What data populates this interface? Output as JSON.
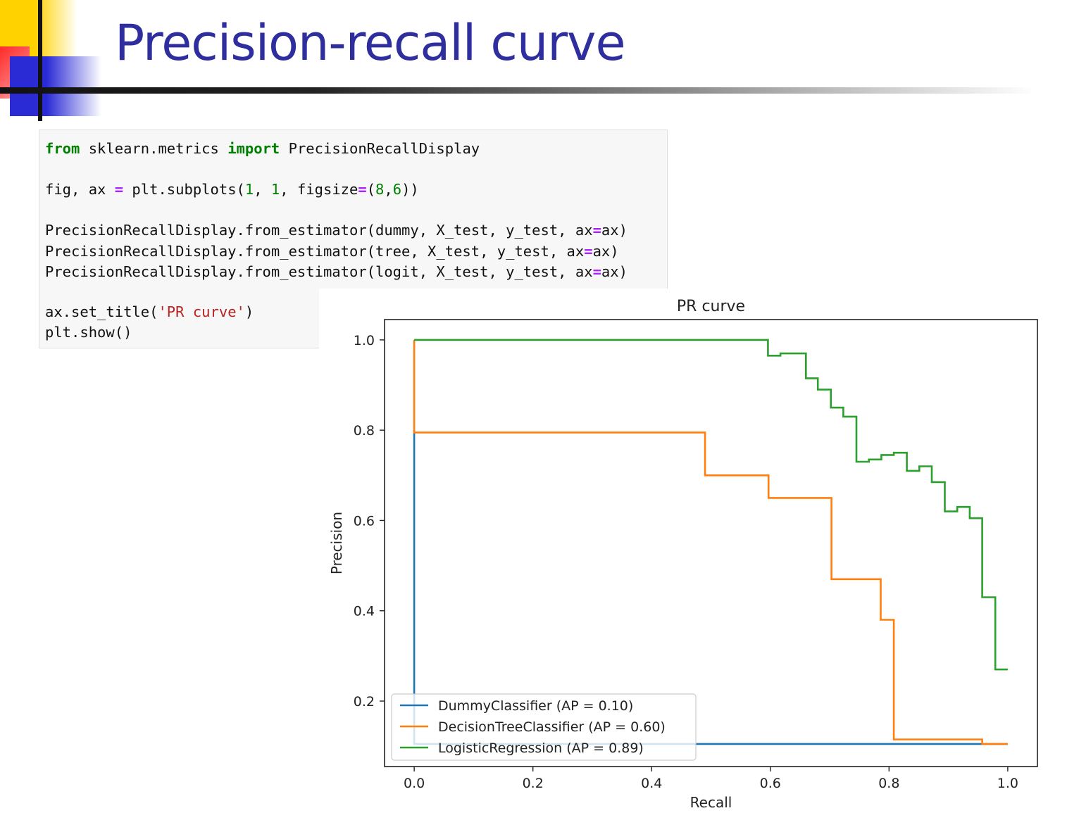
{
  "slide": {
    "title": "Precision-recall curve"
  },
  "code": {
    "line1": [
      "from",
      " sklearn.metrics ",
      "import",
      " PrecisionRecallDisplay"
    ],
    "line2": [
      "fig, ax ",
      "=",
      " plt.subplots(",
      "1",
      ", ",
      "1",
      ", figsize",
      "=",
      "(",
      "8",
      ",",
      "6",
      "))"
    ],
    "line3": [
      "PrecisionRecallDisplay.from_estimator(dummy, X_test, y_test, ax",
      "=",
      "ax)"
    ],
    "line4": [
      "PrecisionRecallDisplay.from_estimator(tree, X_test, y_test, ax",
      "=",
      "ax)"
    ],
    "line5": [
      "PrecisionRecallDisplay.from_estimator(logit, X_test, y_test, ax",
      "=",
      "ax)"
    ],
    "line6": [
      "ax.set_title(",
      "'PR curve'",
      ")"
    ],
    "line7": [
      "plt.show()"
    ]
  },
  "colors": {
    "dummy": "#1f77b4",
    "tree": "#ff7f0e",
    "logit": "#2ca02c",
    "keyword": "#008000",
    "operator": "#aa22ff",
    "string": "#ba2121",
    "title": "#2e2e9e"
  },
  "chart_data": {
    "type": "line",
    "title": "PR curve",
    "xlabel": "Recall",
    "ylabel": "Precision",
    "xlim": [
      -0.05,
      1.05
    ],
    "ylim": [
      0.055,
      1.045
    ],
    "xticks": [
      "0.0",
      "0.2",
      "0.4",
      "0.6",
      "0.8",
      "1.0"
    ],
    "yticks": [
      "0.2",
      "0.4",
      "0.6",
      "0.8",
      "1.0"
    ],
    "grid": false,
    "legend_position": "lower-left",
    "series": [
      {
        "name": "DummyClassifier (AP = 0.10)",
        "color": "#1f77b4",
        "step": "post",
        "points": [
          [
            0.0,
            0.8
          ],
          [
            0.0,
            0.105
          ],
          [
            1.0,
            0.105
          ]
        ]
      },
      {
        "name": "DecisionTreeClassifier (AP = 0.60)",
        "color": "#ff7f0e",
        "step": "post",
        "points": [
          [
            0.0,
            1.0
          ],
          [
            0.0,
            0.795
          ],
          [
            0.49,
            0.7
          ],
          [
            0.597,
            0.65
          ],
          [
            0.703,
            0.47
          ],
          [
            0.786,
            0.38
          ],
          [
            0.808,
            0.115
          ],
          [
            0.957,
            0.105
          ],
          [
            1.0,
            0.105
          ]
        ]
      },
      {
        "name": "LogisticRegression (AP = 0.89)",
        "color": "#2ca02c",
        "step": "post",
        "points": [
          [
            0.0,
            1.0
          ],
          [
            0.596,
            0.965
          ],
          [
            0.617,
            0.97
          ],
          [
            0.66,
            0.915
          ],
          [
            0.68,
            0.89
          ],
          [
            0.702,
            0.85
          ],
          [
            0.723,
            0.83
          ],
          [
            0.745,
            0.73
          ],
          [
            0.766,
            0.735
          ],
          [
            0.787,
            0.745
          ],
          [
            0.808,
            0.75
          ],
          [
            0.83,
            0.71
          ],
          [
            0.851,
            0.72
          ],
          [
            0.872,
            0.685
          ],
          [
            0.894,
            0.62
          ],
          [
            0.915,
            0.63
          ],
          [
            0.936,
            0.605
          ],
          [
            0.957,
            0.43
          ],
          [
            0.979,
            0.27
          ],
          [
            1.0,
            0.27
          ]
        ]
      }
    ]
  }
}
